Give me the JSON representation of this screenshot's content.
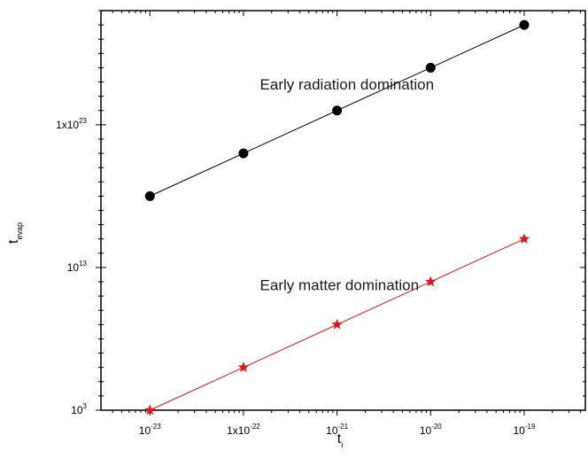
{
  "chart_data": {
    "type": "scatter",
    "x_scale": "log",
    "y_scale": "log",
    "xlim": [
      3e-24,
      4.5e-19
    ],
    "ylim": [
      1000.0,
      1e+31
    ],
    "x_ticks": [
      {
        "value": 1e-23,
        "mantissa": "",
        "base": "10",
        "exp": "-23"
      },
      {
        "value": 1e-22,
        "mantissa": "1x",
        "base": "10",
        "exp": "-22"
      },
      {
        "value": 1e-21,
        "mantissa": "",
        "base": "10",
        "exp": "-21"
      },
      {
        "value": 1e-20,
        "mantissa": "",
        "base": "10",
        "exp": "-20"
      },
      {
        "value": 1e-19,
        "mantissa": "",
        "base": "10",
        "exp": "-19"
      }
    ],
    "y_ticks": [
      {
        "value": 1000.0,
        "mantissa": "",
        "base": "10",
        "exp": "3"
      },
      {
        "value": 10000000000000.0,
        "mantissa": "",
        "base": "10",
        "exp": "13"
      },
      {
        "value": 1e+23,
        "mantissa": "1x",
        "base": "10",
        "exp": "23"
      }
    ],
    "xlabel": {
      "main": "t",
      "sub": "i"
    },
    "ylabel": {
      "main": "t",
      "sub": "evap"
    },
    "grid": false,
    "series": [
      {
        "marker": "circle",
        "color": "#000000",
        "x": [
          1e-23,
          1e-22,
          1e-21,
          1e-20,
          1e-19
        ],
        "y": [
          1e+18,
          1e+21,
          1e+24,
          1e+27,
          1e+30
        ]
      },
      {
        "marker": "star",
        "color": "#e0151b",
        "x": [
          1e-23,
          1e-22,
          1e-21,
          1e-20,
          1e-19
        ],
        "y": [
          1000.0,
          1000000.0,
          1000000000.0,
          1000000000000.0,
          1000000000000000.0
        ]
      }
    ],
    "annotations": [
      {
        "text": "Early radiation domination",
        "x": 1.5e-22,
        "y": 3e+25
      },
      {
        "text": "Early matter domination",
        "x": 1.5e-22,
        "y": 250000000000.0
      }
    ]
  }
}
